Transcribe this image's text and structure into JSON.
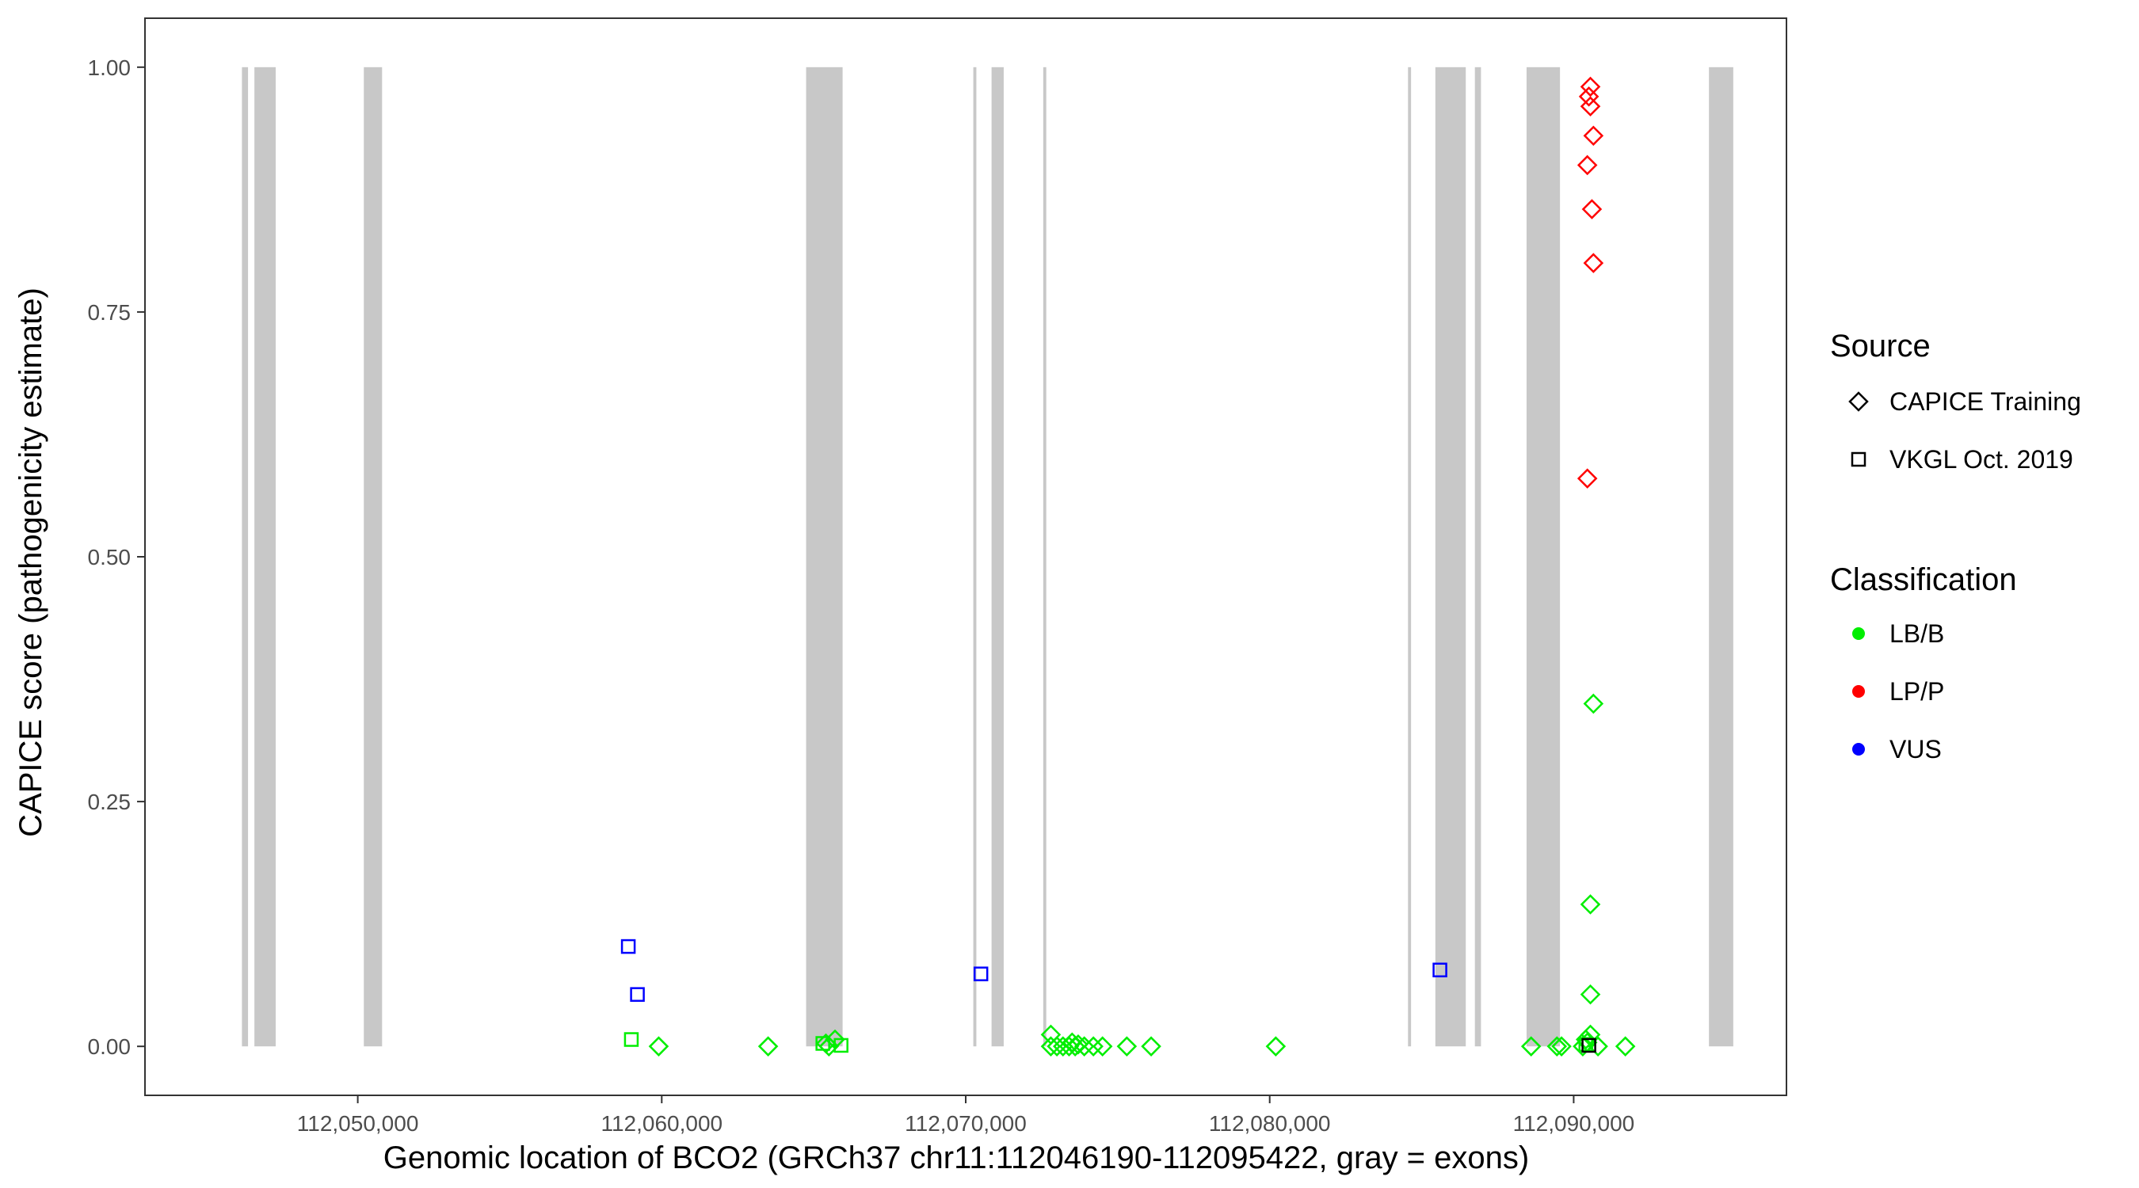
{
  "chart_data": {
    "type": "scatter",
    "xlabel": "Genomic location of BCO2 (GRCh37 chr11:112046190-112095422, gray = exons)",
    "ylabel": "CAPICE score (pathogenicity estimate)",
    "xlim": [
      112043000,
      112097000
    ],
    "ylim": [
      -0.05,
      1.05
    ],
    "x_ticks": [
      {
        "value": 112050000,
        "label": "112,050,000"
      },
      {
        "value": 112060000,
        "label": "112,060,000"
      },
      {
        "value": 112070000,
        "label": "112,070,000"
      },
      {
        "value": 112080000,
        "label": "112,080,000"
      },
      {
        "value": 112090000,
        "label": "112,090,000"
      }
    ],
    "y_ticks": [
      {
        "value": 0.0,
        "label": "0.00"
      },
      {
        "value": 0.25,
        "label": "0.25"
      },
      {
        "value": 0.5,
        "label": "0.50"
      },
      {
        "value": 0.75,
        "label": "0.75"
      },
      {
        "value": 1.0,
        "label": "1.00"
      }
    ],
    "grid": false,
    "exon_color": "#c8c8c8",
    "exons": [
      [
        112046190,
        112046390
      ],
      [
        112046600,
        112047300
      ],
      [
        112050200,
        112050800
      ],
      [
        112064750,
        112065950
      ],
      [
        112070250,
        112070350
      ],
      [
        112070850,
        112071250
      ],
      [
        112072550,
        112072650
      ],
      [
        112084550,
        112084650
      ],
      [
        112085450,
        112086450
      ],
      [
        112086750,
        112086950
      ],
      [
        112088450,
        112089550
      ],
      [
        112094450,
        112095250
      ]
    ],
    "legend": {
      "placement": "right",
      "source_title": "Source",
      "source_items": [
        {
          "label": "CAPICE Training",
          "shape": "diamond"
        },
        {
          "label": "VKGL Oct. 2019",
          "shape": "square"
        }
      ],
      "class_title": "Classification",
      "class_items": [
        {
          "label": "LB/B",
          "color": "#00ee00"
        },
        {
          "label": "LP/P",
          "color": "#ff0000"
        },
        {
          "label": "VUS",
          "color": "#0000ff"
        }
      ]
    },
    "series": [
      {
        "source": "CAPICE Training",
        "shape": "diamond",
        "classification": "LP/P",
        "color": "#ff0000",
        "points": [
          [
            112090550,
            0.98
          ],
          [
            112090500,
            0.97
          ],
          [
            112090550,
            0.96
          ],
          [
            112090650,
            0.93
          ],
          [
            112090450,
            0.9
          ],
          [
            112090600,
            0.855
          ],
          [
            112090650,
            0.8
          ],
          [
            112090450,
            0.58
          ]
        ]
      },
      {
        "source": "CAPICE Training",
        "shape": "diamond",
        "classification": "LB/B",
        "color": "#00ee00",
        "points": [
          [
            112090650,
            0.35
          ],
          [
            112090550,
            0.145
          ],
          [
            112090550,
            0.053
          ],
          [
            112090550,
            0.012
          ],
          [
            112090400,
            0.007
          ],
          [
            112090450,
            0.004
          ],
          [
            112090300,
            0.0
          ],
          [
            112090800,
            0.0
          ],
          [
            112091700,
            0.0
          ],
          [
            112088600,
            0.0
          ],
          [
            112089450,
            0.0
          ],
          [
            112089600,
            0.0
          ],
          [
            112080200,
            0.0
          ],
          [
            112076100,
            0.0
          ],
          [
            112075300,
            0.0
          ],
          [
            112074500,
            0.0
          ],
          [
            112074200,
            0.0
          ],
          [
            112073900,
            0.0
          ],
          [
            112073600,
            0.0
          ],
          [
            112073400,
            0.0
          ],
          [
            112073200,
            0.0
          ],
          [
            112073000,
            0.0
          ],
          [
            112072800,
            0.0
          ],
          [
            112072800,
            0.012
          ],
          [
            112073500,
            0.004
          ],
          [
            112073700,
            0.002
          ],
          [
            112065400,
            0.003
          ],
          [
            112065700,
            0.007
          ],
          [
            112065500,
            0.0
          ],
          [
            112063500,
            0.0
          ],
          [
            112059900,
            0.0
          ]
        ]
      },
      {
        "source": "VKGL Oct. 2019",
        "shape": "square",
        "classification": "LB/B",
        "color": "#00ee00",
        "points": [
          [
            112059000,
            0.007
          ],
          [
            112065300,
            0.003
          ],
          [
            112065900,
            0.001
          ],
          [
            112090400,
            0.002
          ]
        ]
      },
      {
        "source": "VKGL Oct. 2019",
        "shape": "square",
        "classification": "VUS",
        "color": "#0000ff",
        "points": [
          [
            112058900,
            0.102
          ],
          [
            112059200,
            0.053
          ],
          [
            112070500,
            0.074
          ],
          [
            112085600,
            0.078
          ]
        ]
      },
      {
        "source": "VKGL Oct. 2019",
        "shape": "square",
        "classification": "LP/P",
        "color": "#000000",
        "points": [
          [
            112090500,
            0.001
          ]
        ]
      }
    ]
  }
}
